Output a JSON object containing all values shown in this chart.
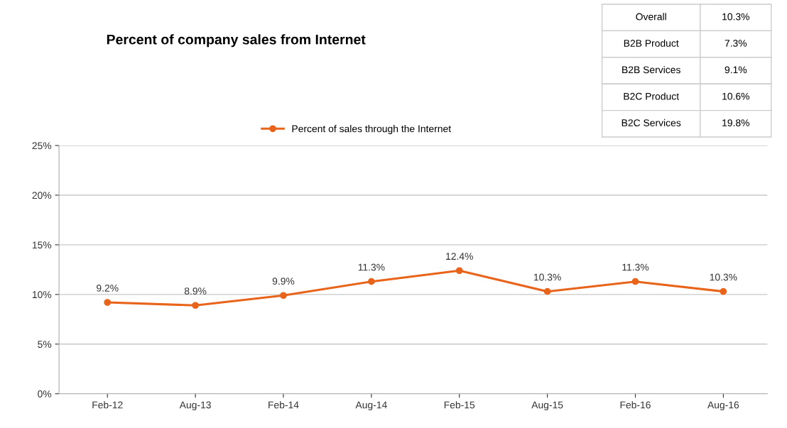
{
  "chart_data": {
    "type": "line",
    "title": "Percent of company sales from Internet",
    "categories": [
      "Feb-12",
      "Aug-13",
      "Feb-14",
      "Aug-14",
      "Feb-15",
      "Aug-15",
      "Feb-16",
      "Aug-16"
    ],
    "series": [
      {
        "name": "Percent of sales through the Internet",
        "color": "#e8641b",
        "values": [
          9.2,
          8.9,
          9.9,
          11.3,
          12.4,
          10.3,
          11.3,
          10.3
        ],
        "value_labels": [
          "9.2%",
          "8.9%",
          "9.9%",
          "11.3%",
          "12.4%",
          "10.3%",
          "11.3%",
          "10.3%"
        ]
      }
    ],
    "ylim": [
      0,
      25
    ],
    "yticks": [
      {
        "value": 0,
        "label": "0%"
      },
      {
        "value": 5,
        "label": "5%"
      },
      {
        "value": 10,
        "label": "10%"
      },
      {
        "value": 15,
        "label": "15%"
      },
      {
        "value": 20,
        "label": "20%"
      },
      {
        "value": 25,
        "label": "25%"
      }
    ],
    "grid": "y",
    "legend": "top",
    "marker": "circle",
    "line_style": "solid",
    "annotations": [
      "Overall",
      "10.3%",
      "B2B Product",
      "7.3%",
      "B2B Services",
      "9.1%",
      "B2C Product",
      "10.6%",
      "B2C Services",
      "19.8%"
    ]
  }
}
